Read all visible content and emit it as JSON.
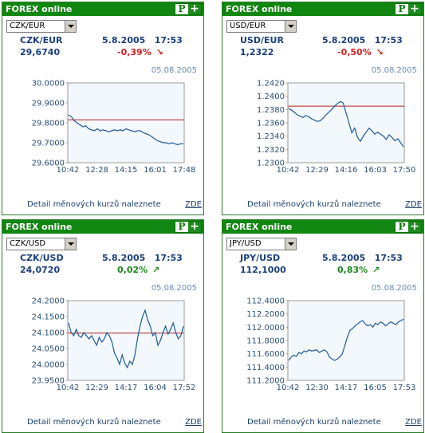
{
  "widgets": [
    {
      "title": "FOREX online",
      "logo": {
        "p": "P",
        "plus": "+"
      },
      "select_value": "CZK/EUR",
      "pair": "CZK/EUR",
      "datetime": "5.8.2005   17:53",
      "value": "29,6740",
      "change": "-0,39%",
      "direction": "down",
      "chart_date": "05.08.2005",
      "footer_text": "Detail měnových kurzů naleznete",
      "footer_link": "ZDE",
      "chart_data": {
        "type": "line",
        "yticks": [
          "30.0000",
          "29.9000",
          "29.8000",
          "29.7000",
          "29.6000"
        ],
        "ylim": [
          29.6,
          30.0
        ],
        "xticks": [
          "10:42",
          "12:28",
          "14:15",
          "16:01",
          "17:48"
        ],
        "reference": 29.815,
        "values": [
          29.84,
          29.83,
          29.81,
          29.8,
          29.79,
          29.78,
          29.785,
          29.77,
          29.765,
          29.76,
          29.77,
          29.76,
          29.765,
          29.76,
          29.755,
          29.76,
          29.765,
          29.76,
          29.765,
          29.76,
          29.77,
          29.765,
          29.76,
          29.755,
          29.76,
          29.76,
          29.75,
          29.745,
          29.74,
          29.73,
          29.72,
          29.71,
          29.705,
          29.7,
          29.7,
          29.695,
          29.7,
          29.695,
          29.69,
          29.695,
          29.695
        ]
      }
    },
    {
      "title": "FOREX online",
      "logo": {
        "p": "P",
        "plus": "+"
      },
      "select_value": "USD/EUR",
      "pair": "USD/EUR",
      "datetime": "5.8.2005   17:53",
      "value": "1,2322",
      "change": "-0,50%",
      "direction": "down",
      "chart_date": "05.08.2005",
      "footer_text": "Detail měnových kurzů naleznete",
      "footer_link": "ZDE",
      "chart_data": {
        "type": "line",
        "yticks": [
          "1.2420",
          "1.2400",
          "1.2380",
          "1.2360",
          "1.2340",
          "1.2320",
          "1.2300"
        ],
        "ylim": [
          1.23,
          1.242
        ],
        "xticks": [
          "10:42",
          "12:29",
          "14:16",
          "16:03",
          "17:50"
        ],
        "reference": 1.2385,
        "values": [
          1.2382,
          1.2379,
          1.2376,
          1.2372,
          1.237,
          1.2368,
          1.2371,
          1.2369,
          1.2366,
          1.2364,
          1.2362,
          1.2363,
          1.2367,
          1.2372,
          1.2376,
          1.238,
          1.2385,
          1.2389,
          1.2392,
          1.239,
          1.2375,
          1.236,
          1.2345,
          1.2352,
          1.2338,
          1.2332,
          1.234,
          1.2346,
          1.2352,
          1.2348,
          1.2343,
          1.2346,
          1.2343,
          1.234,
          1.2335,
          1.2342,
          1.2338,
          1.2333,
          1.2336,
          1.233,
          1.2324
        ]
      }
    },
    {
      "title": "FOREX online",
      "logo": {
        "p": "P",
        "plus": "+"
      },
      "select_value": "CZK/USD",
      "pair": "CZK/USD",
      "datetime": "5.8.2005   17:53",
      "value": "24,0720",
      "change": "0,02%",
      "direction": "up",
      "chart_date": "05.08.2005",
      "footer_text": "Detail měnových kurzů naleznete",
      "footer_link": "ZDE",
      "chart_data": {
        "type": "line",
        "yticks": [
          "24.2000",
          "24.1500",
          "24.1000",
          "24.0500",
          "24.0000",
          "23.9500"
        ],
        "ylim": [
          23.95,
          24.2
        ],
        "xticks": [
          "10:42",
          "12:29",
          "14:17",
          "16:04",
          "17:52"
        ],
        "reference": 24.098,
        "values": [
          24.13,
          24.1,
          24.09,
          24.11,
          24.09,
          24.085,
          24.1,
          24.09,
          24.08,
          24.09,
          24.075,
          24.06,
          24.085,
          24.07,
          24.08,
          24.1,
          24.09,
          24.07,
          24.035,
          24.02,
          24.0,
          24.03,
          24.005,
          23.99,
          24.01,
          24.0,
          24.03,
          24.08,
          24.12,
          24.15,
          24.17,
          24.14,
          24.12,
          24.09,
          24.1,
          24.06,
          24.075,
          24.1,
          24.12,
          24.095,
          24.11,
          24.13,
          24.1,
          24.08,
          24.09,
          24.12
        ]
      }
    },
    {
      "title": "FOREX online",
      "logo": {
        "p": "P",
        "plus": "+"
      },
      "select_value": "JPY/USD",
      "pair": "JPY/USD",
      "datetime": "5.8.2005   17:53",
      "value": "112,1000",
      "change": "0,83%",
      "direction": "up",
      "chart_date": "05.08.2005",
      "footer_text": "Detail měnových kurzů naleznete",
      "footer_link": "ZDE",
      "chart_data": {
        "type": "line",
        "yticks": [
          "112.4000",
          "112.2000",
          "112.0000",
          "111.8000",
          "111.6000",
          "111.4000",
          "111.2000"
        ],
        "ylim": [
          111.2,
          112.4
        ],
        "xticks": [
          "10:42",
          "12:30",
          "14:17",
          "16:05",
          "17:53"
        ],
        "reference": null,
        "values": [
          111.5,
          111.55,
          111.58,
          111.56,
          111.62,
          111.6,
          111.64,
          111.63,
          111.66,
          111.64,
          111.65,
          111.66,
          111.62,
          111.64,
          111.66,
          111.63,
          111.55,
          111.52,
          111.5,
          111.52,
          111.55,
          111.6,
          111.72,
          111.85,
          111.95,
          111.98,
          112.02,
          112.05,
          112.08,
          112.1,
          112.05,
          112.02,
          112.04,
          112.0,
          112.06,
          112.04,
          112.08,
          112.06,
          112.02,
          112.05,
          112.08,
          112.06,
          112.04,
          112.08,
          112.1,
          112.12
        ]
      }
    }
  ]
}
